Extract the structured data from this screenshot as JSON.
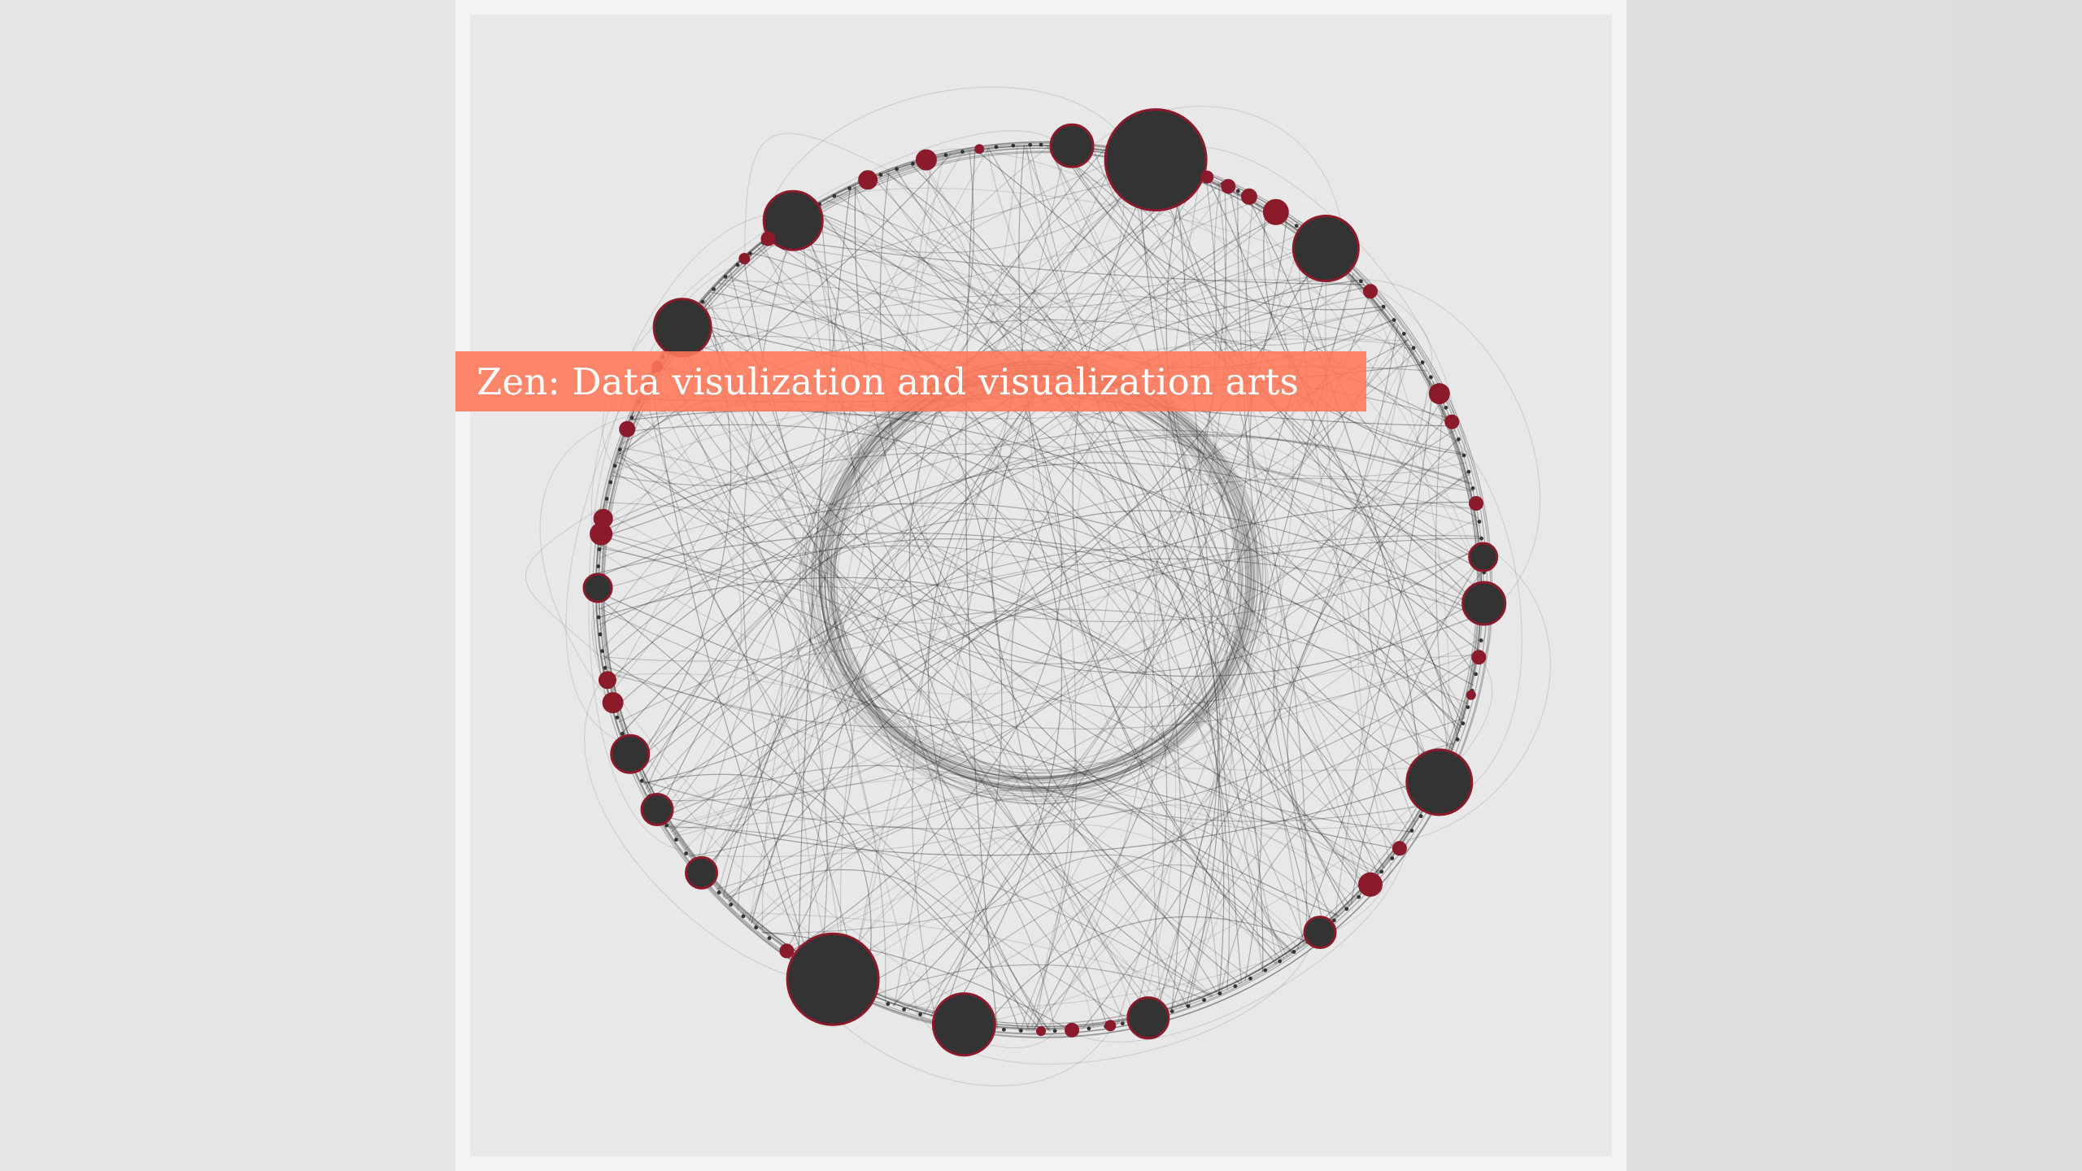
{
  "slide": {
    "title": "Zen: Data visulization and visualization arts"
  },
  "artwork": {
    "description_kind": "circular-network-graph",
    "palette": {
      "background": "#e8e8e8",
      "frame": "#f3f3f3",
      "page": "#dcdddd",
      "node_fill": "#333333",
      "node_stroke": "#8b1a2b",
      "accent_node_fill": "#8b1a2b",
      "edge": "#222222",
      "banner": "#ff7858"
    }
  }
}
